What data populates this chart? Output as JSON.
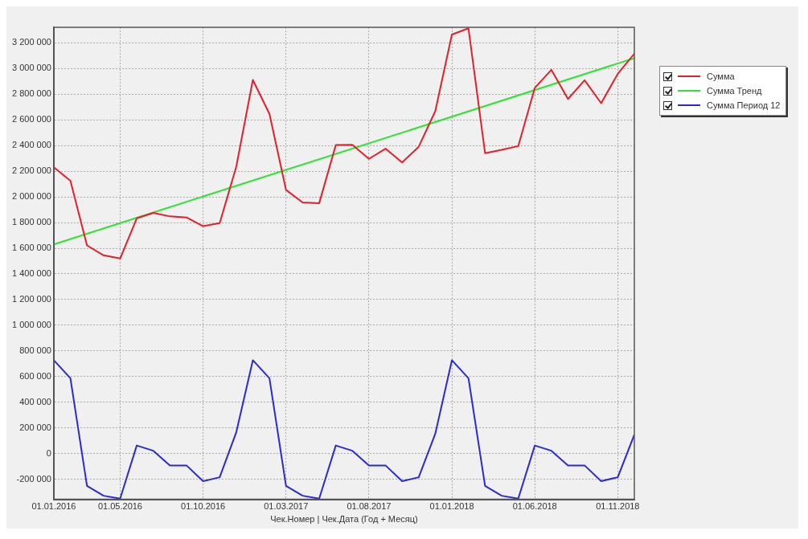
{
  "chart_data": {
    "type": "line",
    "xlabel": "Чек.Номер | Чек.Дата (Год + Месяц)",
    "x": [
      "2016-01",
      "2016-02",
      "2016-03",
      "2016-04",
      "2016-05",
      "2016-06",
      "2016-07",
      "2016-08",
      "2016-09",
      "2016-10",
      "2016-11",
      "2016-12",
      "2017-01",
      "2017-02",
      "2017-03",
      "2017-04",
      "2017-05",
      "2017-06",
      "2017-07",
      "2017-08",
      "2017-09",
      "2017-10",
      "2017-11",
      "2017-12",
      "2018-01",
      "2018-02",
      "2018-03",
      "2018-04",
      "2018-05",
      "2018-06",
      "2018-07",
      "2018-08",
      "2018-09",
      "2018-10",
      "2018-11",
      "2018-12"
    ],
    "series": [
      {
        "name": "Сумма",
        "color": "#e0212b",
        "values": [
          2230000,
          2125000,
          1622000,
          1545000,
          1520000,
          1833000,
          1875000,
          1848000,
          1840000,
          1772000,
          1796000,
          2235000,
          2910000,
          2646000,
          2054000,
          1957000,
          1951000,
          2403000,
          2405000,
          2296000,
          2375000,
          2268000,
          2390000,
          2668000,
          3264000,
          3312000,
          2340000,
          2366000,
          2395000,
          2849000,
          2989000,
          2762000,
          2908000,
          2729000,
          2958000,
          3115000
        ]
      },
      {
        "name": "Сумма Тренд",
        "color": "#33e033",
        "x": [
          "2016-01",
          "2018-12"
        ],
        "values": [
          1630000,
          3080000
        ]
      },
      {
        "name": "Сумма Период 12",
        "color": "#2a2ad0",
        "values": [
          728000,
          588000,
          -251000,
          -327000,
          -350000,
          64000,
          23000,
          -91000,
          -91000,
          -214000,
          -183000,
          167000,
          728000,
          588000,
          -251000,
          -327000,
          -350000,
          64000,
          23000,
          -91000,
          -91000,
          -214000,
          -183000,
          156000,
          728000,
          588000,
          -251000,
          -327000,
          -350000,
          64000,
          23000,
          -91000,
          -91000,
          -214000,
          -183000,
          148000
        ]
      }
    ],
    "xlim": [
      "2016-01",
      "2018-12"
    ],
    "xticks": [
      {
        "value": "2016-01",
        "label": "01.01.2016"
      },
      {
        "value": "2016-05",
        "label": "01.05.2016"
      },
      {
        "value": "2016-10",
        "label": "01.10.2016"
      },
      {
        "value": "2017-03",
        "label": "01.03.2017"
      },
      {
        "value": "2017-08",
        "label": "01.08.2017"
      },
      {
        "value": "2018-01",
        "label": "01.01.2018"
      },
      {
        "value": "2018-06",
        "label": "01.06.2018"
      },
      {
        "value": "2018-11",
        "label": "01.11.2018"
      }
    ],
    "ylim": [
      -355000,
      3320000
    ],
    "yticks": [
      {
        "value": -200000,
        "label": "-200 000"
      },
      {
        "value": 0,
        "label": "0"
      },
      {
        "value": 200000,
        "label": "200 000"
      },
      {
        "value": 400000,
        "label": "400 000"
      },
      {
        "value": 600000,
        "label": "600 000"
      },
      {
        "value": 800000,
        "label": "800 000"
      },
      {
        "value": 1000000,
        "label": "1 000 000"
      },
      {
        "value": 1200000,
        "label": "1 200 000"
      },
      {
        "value": 1400000,
        "label": "1 400 000"
      },
      {
        "value": 1600000,
        "label": "1 600 000"
      },
      {
        "value": 1800000,
        "label": "1 800 000"
      },
      {
        "value": 2000000,
        "label": "2 000 000"
      },
      {
        "value": 2200000,
        "label": "2 200 000"
      },
      {
        "value": 2400000,
        "label": "2 400 000"
      },
      {
        "value": 2600000,
        "label": "2 600 000"
      },
      {
        "value": 2800000,
        "label": "2 800 000"
      },
      {
        "value": 3000000,
        "label": "3 000 000"
      },
      {
        "value": 3200000,
        "label": "3 200 000"
      }
    ],
    "grid": true,
    "legend": "top right",
    "marker": "none",
    "line_style": "solid"
  }
}
